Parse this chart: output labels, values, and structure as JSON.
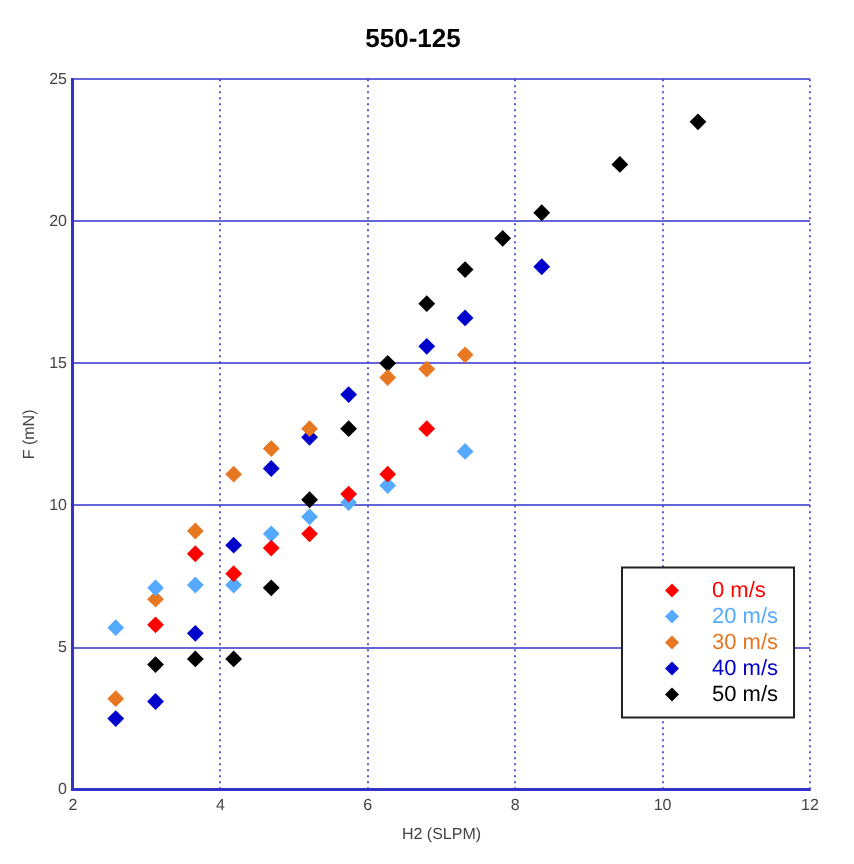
{
  "chart_data": {
    "type": "scatter",
    "title": "550-125",
    "xlabel": "H2 (SLPM)",
    "ylabel": "F (mN)",
    "xlim": [
      2,
      12
    ],
    "xticks": [
      2,
      4,
      6,
      8,
      10,
      12
    ],
    "ylim": [
      0,
      25
    ],
    "yticks": [
      0,
      5,
      10,
      15,
      20,
      25
    ],
    "grid": true,
    "legend": "bottom right",
    "marker": "diamond",
    "series": [
      {
        "name": "0 m/s",
        "color": "#ff0000",
        "x": [
          3.12,
          3.66,
          4.18,
          4.69,
          5.21,
          5.74,
          6.27,
          6.8
        ],
        "values": [
          5.8,
          8.3,
          7.6,
          8.5,
          9.0,
          10.4,
          11.1,
          12.7
        ]
      },
      {
        "name": "20 m/s",
        "color": "#55aaff",
        "x": [
          2.58,
          3.12,
          3.66,
          4.18,
          4.69,
          5.21,
          5.74,
          6.27,
          7.32
        ],
        "values": [
          5.7,
          7.1,
          7.2,
          7.2,
          9.0,
          9.6,
          10.1,
          10.7,
          11.9
        ]
      },
      {
        "name": "30 m/s",
        "color": "#e87722",
        "x": [
          2.58,
          3.12,
          3.66,
          4.18,
          4.69,
          5.21,
          6.27,
          6.8,
          7.32
        ],
        "values": [
          3.2,
          6.7,
          9.1,
          11.1,
          12.0,
          12.7,
          14.5,
          14.8,
          15.3
        ]
      },
      {
        "name": "40 m/s",
        "color": "#0000cc",
        "x": [
          2.58,
          3.12,
          3.66,
          4.18,
          4.69,
          5.21,
          5.74,
          6.8,
          7.32,
          8.36
        ],
        "values": [
          2.5,
          3.1,
          5.5,
          8.6,
          11.3,
          12.4,
          13.9,
          15.6,
          16.6,
          18.4
        ]
      },
      {
        "name": "50 m/s",
        "color": "#000000",
        "x": [
          3.12,
          3.66,
          4.18,
          4.69,
          5.21,
          5.74,
          6.27,
          6.8,
          7.32,
          7.83,
          8.36,
          9.42,
          10.48
        ],
        "values": [
          4.4,
          4.6,
          4.6,
          7.1,
          10.2,
          12.7,
          15.0,
          17.1,
          18.3,
          19.4,
          20.3,
          22.0,
          23.5
        ]
      }
    ]
  }
}
